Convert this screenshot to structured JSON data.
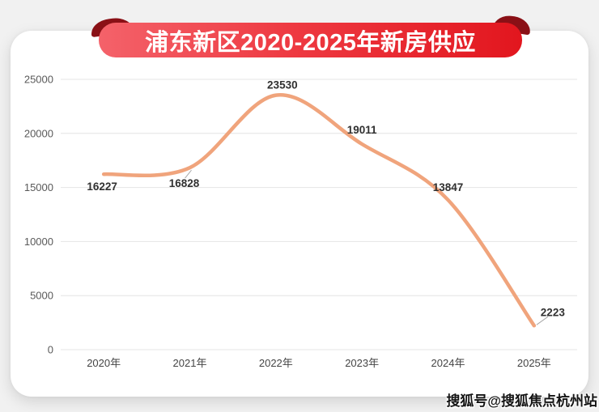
{
  "banner": {
    "title": "浦东新区2020-2025年新房供应",
    "ribbon_color_left": "#f4626a",
    "ribbon_color_right": "#e2161e",
    "fold_color": "#8a1016"
  },
  "watermark": {
    "text": "搜狐号@搜狐焦点杭州站"
  },
  "chart_data": {
    "type": "line",
    "title": "浦东新区2020-2025年新房供应",
    "categories": [
      "2020年",
      "2021年",
      "2022年",
      "2023年",
      "2024年",
      "2025年"
    ],
    "values": [
      16227,
      16828,
      23530,
      19011,
      13847,
      2223
    ],
    "data_labels": [
      "16227",
      "16828",
      "23530",
      "19011",
      "13847",
      "2223"
    ],
    "xlabel": "",
    "ylabel": "",
    "ylim": [
      0,
      25000
    ],
    "yticks": [
      0,
      5000,
      10000,
      15000,
      20000,
      25000
    ],
    "grid": true,
    "legend": "none",
    "line_color": "#f0a47c",
    "grid_color": "#e4e4e4",
    "axis_text_color": "#595959",
    "label_text_color": "#303030",
    "leader_line_color": "#a8a8a8"
  }
}
